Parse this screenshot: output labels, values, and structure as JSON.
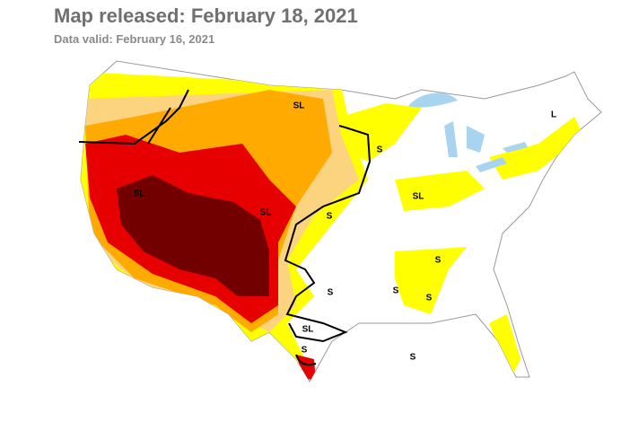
{
  "header": {
    "title": "Map released: February 18, 2021",
    "subtitle": "Data valid: February 16, 2021"
  },
  "map": {
    "labels": [
      "SL",
      "S",
      "SL",
      "SL",
      "S",
      "SL",
      "S",
      "S",
      "S",
      "S",
      "SL",
      "S",
      "S",
      "L"
    ]
  }
}
